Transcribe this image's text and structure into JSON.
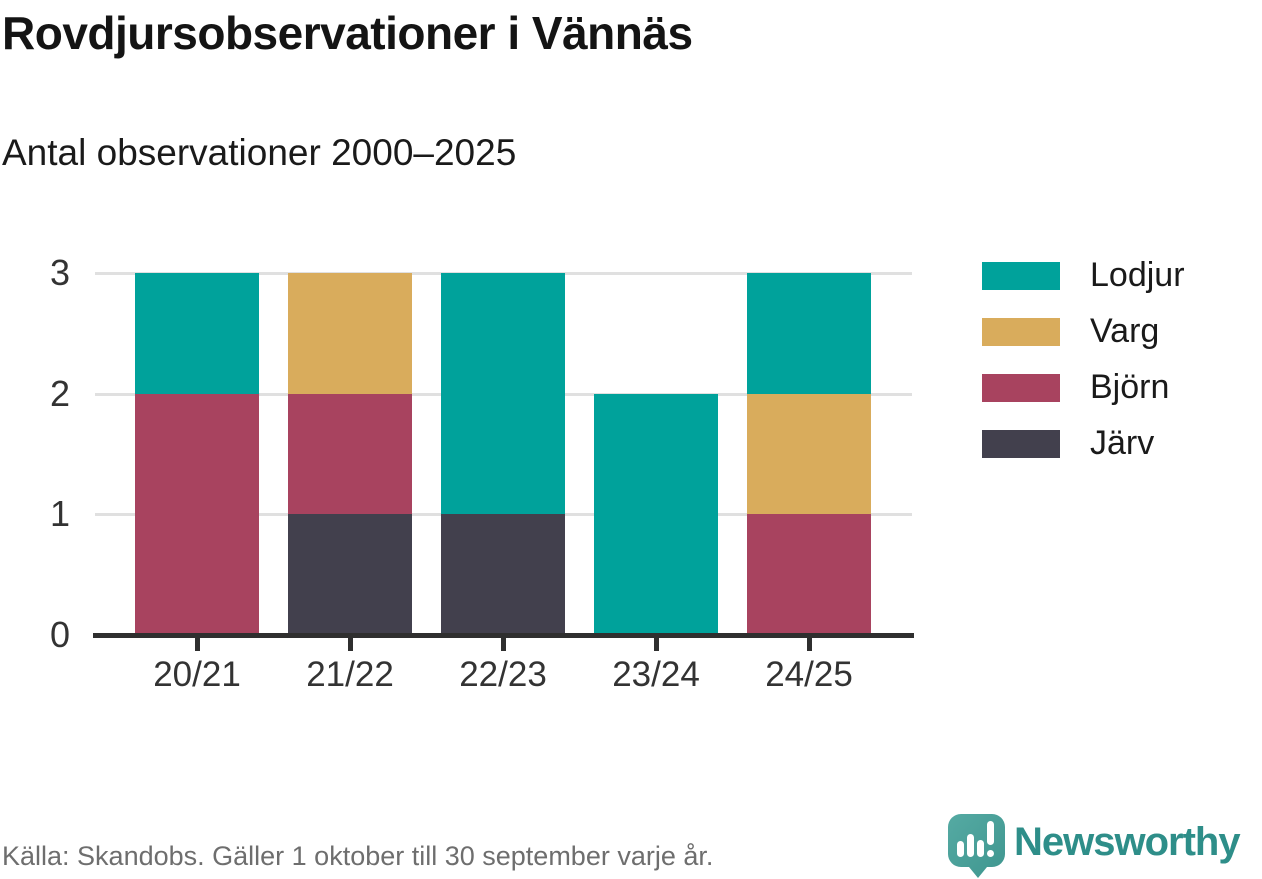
{
  "header": {
    "title": "Rovdjursobservationer i Vännäs",
    "subtitle": "Antal observationer 2000–2025"
  },
  "chart_data": {
    "type": "bar",
    "stacked": true,
    "title": "Rovdjursobservationer i Vännäs",
    "subtitle": "Antal observationer 2000–2025",
    "categories": [
      "20/21",
      "21/22",
      "22/23",
      "23/24",
      "24/25"
    ],
    "series": [
      {
        "name": "Lodjur",
        "color": "#00a29b",
        "values": [
          1,
          0,
          2,
          2,
          1
        ]
      },
      {
        "name": "Varg",
        "color": "#d9ac5c",
        "values": [
          0,
          1,
          0,
          0,
          1
        ]
      },
      {
        "name": "Björn",
        "color": "#a8435f",
        "values": [
          2,
          1,
          0,
          0,
          1
        ]
      },
      {
        "name": "Järv",
        "color": "#42404d",
        "values": [
          0,
          1,
          1,
          0,
          0
        ]
      }
    ],
    "stack_order_bottom_to_top": [
      "Järv",
      "Björn",
      "Varg",
      "Lodjur"
    ],
    "ylim": [
      0,
      3
    ],
    "yticks": [
      0,
      1,
      2,
      3
    ],
    "grid": true,
    "legend_position": "right",
    "grid_color": "#e0e0e0",
    "axis_color": "#2f2f2f",
    "tick_label_color": "#333333"
  },
  "footer": {
    "source": "Källa: Skandobs. Gäller 1 oktober till 30 september varje år."
  },
  "brand": {
    "name": "Newsworthy",
    "icon_color": "#47a099",
    "wordmark_color": "#2e8e89"
  }
}
